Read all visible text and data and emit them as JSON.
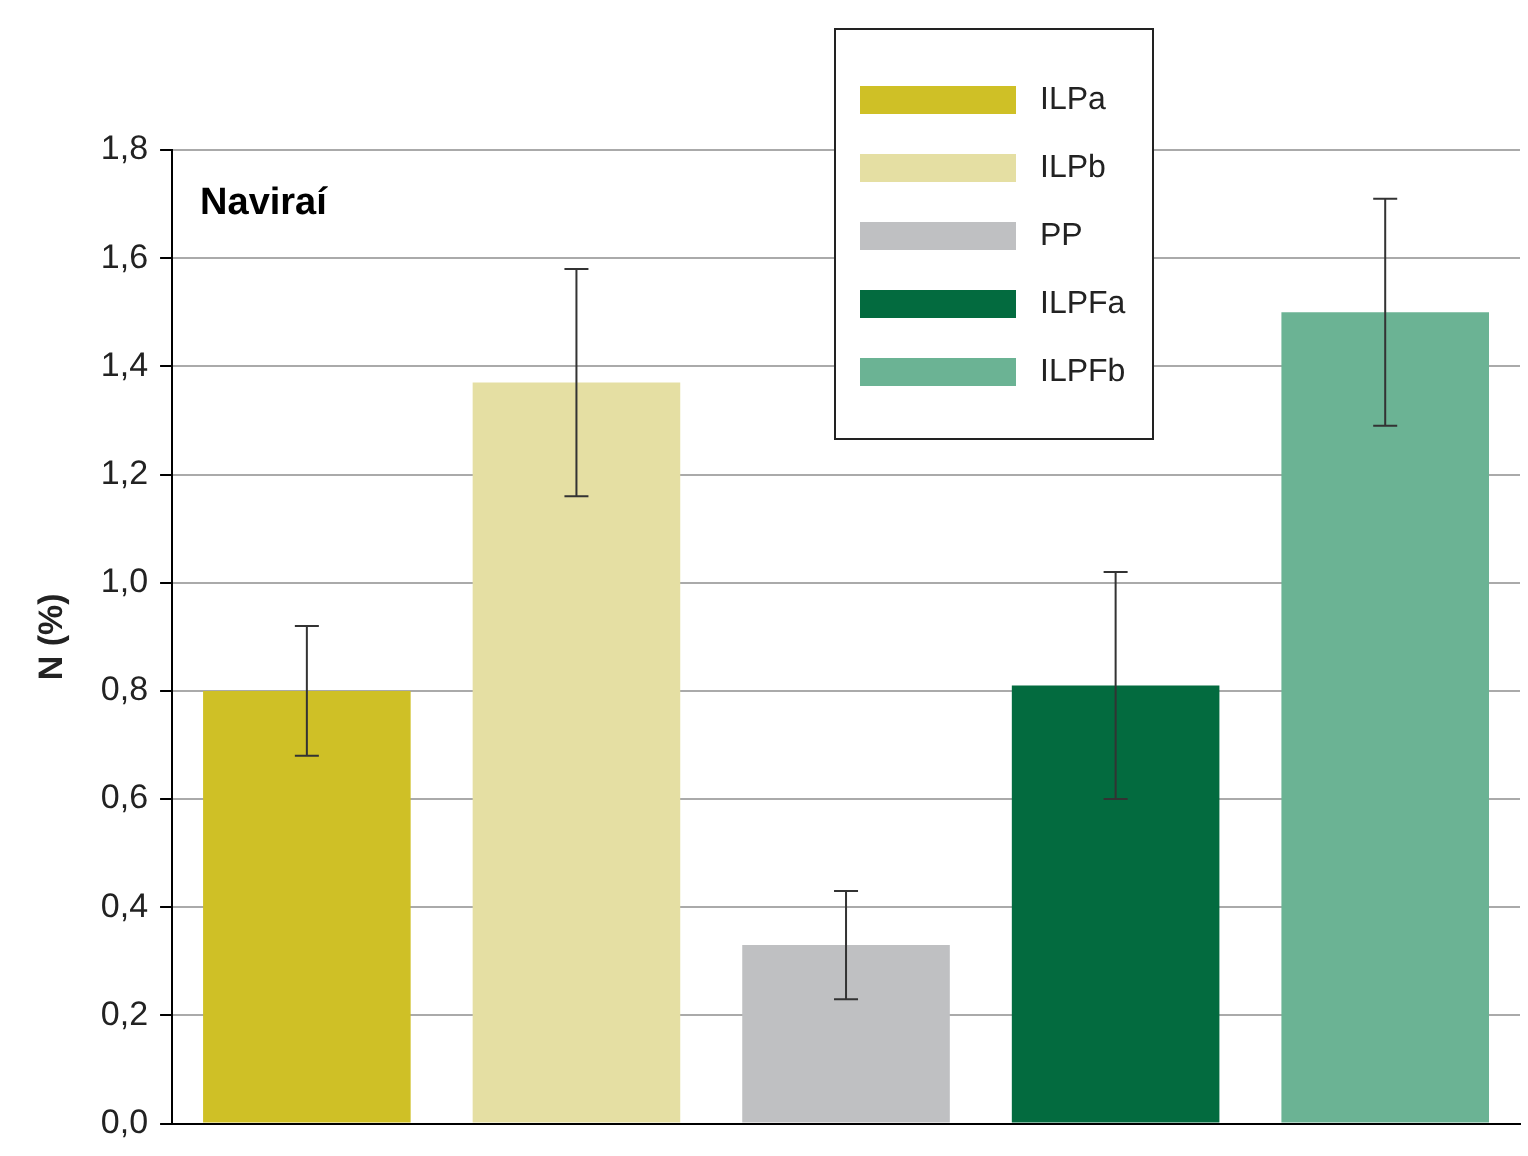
{
  "chart_data": {
    "type": "bar",
    "title": "Naviraí",
    "ylabel": "N (%)",
    "categories": [
      null,
      null,
      null,
      null,
      null
    ],
    "series": [
      {
        "name": "ILPa",
        "color": "#cfc026",
        "values": [
          0.8,
          null,
          null,
          null,
          null
        ],
        "errors": [
          0.12,
          null,
          null,
          null,
          null
        ]
      },
      {
        "name": "ILPb",
        "color": "#e5dfa3",
        "values": [
          null,
          1.37,
          null,
          null,
          null
        ],
        "errors": [
          null,
          0.21,
          null,
          null,
          null
        ]
      },
      {
        "name": "PP",
        "color": "#bfc0c2",
        "values": [
          null,
          null,
          0.33,
          null,
          null
        ],
        "errors": [
          null,
          null,
          0.1,
          null,
          null
        ]
      },
      {
        "name": "ILPFa",
        "color": "#036b3f",
        "values": [
          null,
          null,
          null,
          0.81,
          null
        ],
        "errors": [
          null,
          null,
          null,
          0.21,
          null
        ]
      },
      {
        "name": "ILPFb",
        "color": "#6bb394",
        "values": [
          null,
          null,
          null,
          null,
          1.5
        ],
        "errors": [
          null,
          null,
          null,
          null,
          0.21
        ]
      }
    ],
    "ylim": [
      0,
      1.8
    ],
    "yticks": [
      {
        "value": 0,
        "label": "0,0"
      },
      {
        "value": 0.2,
        "label": "0,2"
      },
      {
        "value": 0.4,
        "label": "0,4"
      },
      {
        "value": 0.6,
        "label": "0,6"
      },
      {
        "value": 0.8,
        "label": "0,8"
      },
      {
        "value": 1,
        "label": "1,0"
      },
      {
        "value": 1.2,
        "label": "1,2"
      },
      {
        "value": 1.4,
        "label": "1,4"
      },
      {
        "value": 1.6,
        "label": "1,6"
      },
      {
        "value": 1.8,
        "label": "1,8"
      }
    ],
    "grid": "y",
    "legend": "top right"
  }
}
